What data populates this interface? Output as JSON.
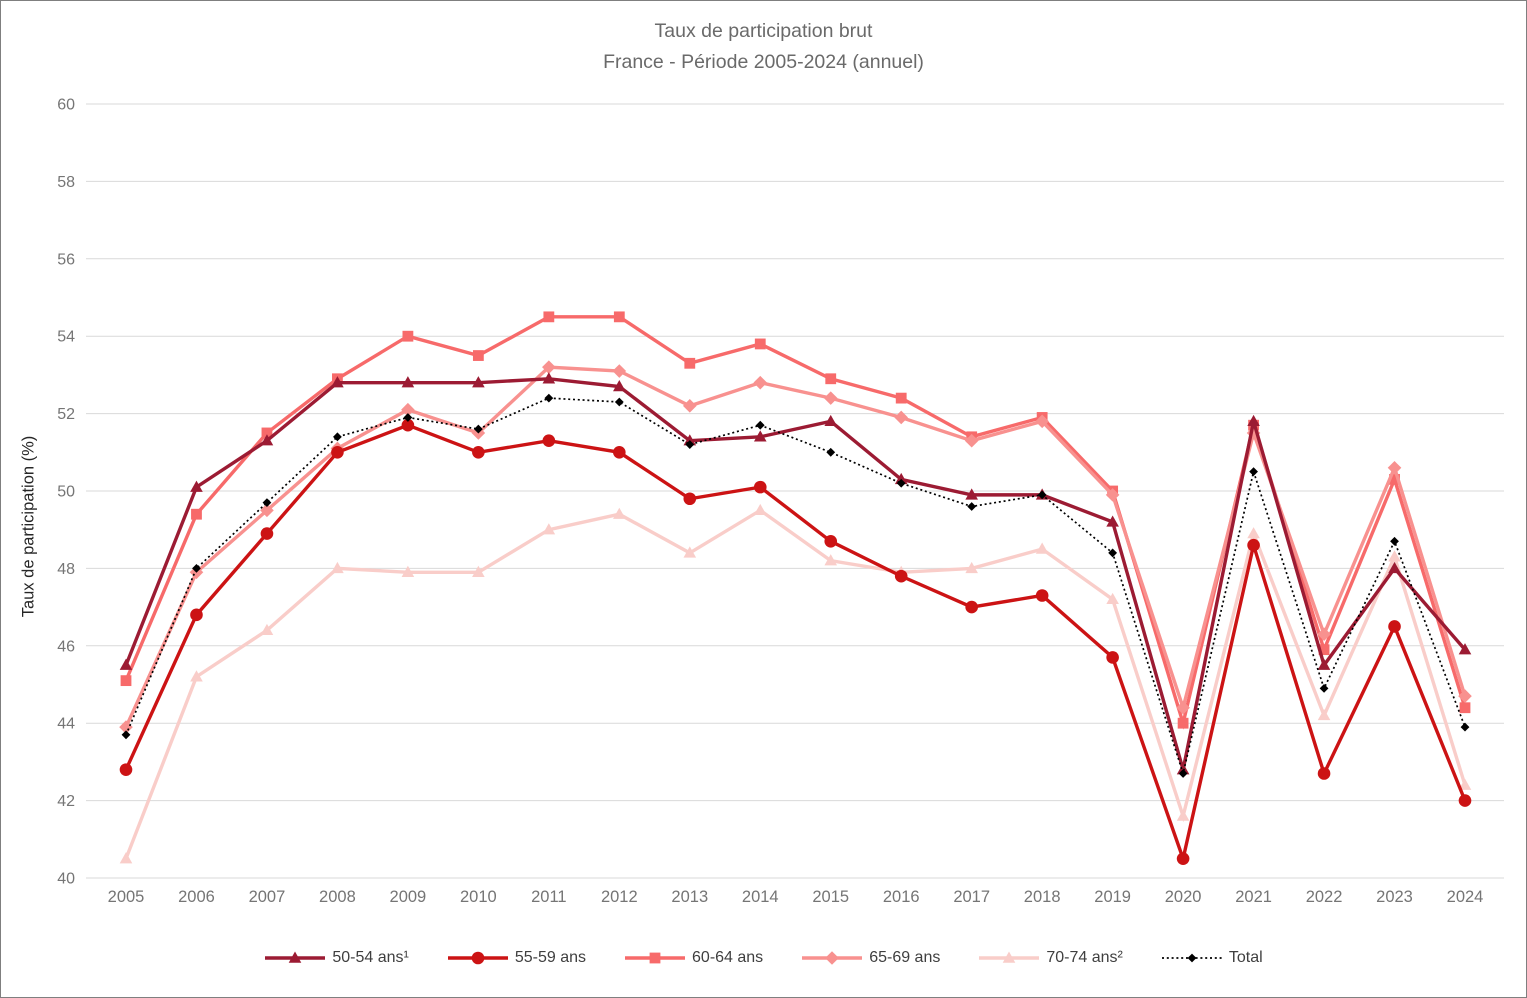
{
  "chart_data": {
    "type": "line",
    "title": "Taux de participation brut",
    "subtitle": "France - Période 2005-2024 (annuel)",
    "ylabel": "Taux de participation (%)",
    "xlabel": "",
    "ylim": [
      40,
      60
    ],
    "yticks": [
      40,
      42,
      44,
      46,
      48,
      50,
      52,
      54,
      56,
      58,
      60
    ],
    "grid": "horizontal-light",
    "grid_color": "#d9d9d9",
    "legend_position": "bottom",
    "categories": [
      "2005",
      "2006",
      "2007",
      "2008",
      "2009",
      "2010",
      "2011",
      "2012",
      "2013",
      "2014",
      "2015",
      "2016",
      "2017",
      "2018",
      "2019",
      "2020",
      "2021",
      "2022",
      "2023",
      "2024"
    ],
    "series": [
      {
        "name": "50-54 ans¹",
        "color": "#9c1b33",
        "marker": "triangle",
        "line": "solid",
        "values": [
          45.5,
          50.1,
          51.3,
          52.8,
          52.8,
          52.8,
          52.9,
          52.7,
          51.3,
          51.4,
          51.8,
          50.3,
          49.9,
          49.9,
          49.2,
          42.8,
          51.8,
          45.5,
          48.0,
          45.9
        ]
      },
      {
        "name": "55-59 ans",
        "color": "#cc1314",
        "marker": "circle",
        "line": "solid",
        "values": [
          42.8,
          46.8,
          48.9,
          51.0,
          51.7,
          51.0,
          51.3,
          51.0,
          49.8,
          50.1,
          48.7,
          47.8,
          47.0,
          47.3,
          45.7,
          40.5,
          48.6,
          42.7,
          46.5,
          42.0
        ]
      },
      {
        "name": "60-64 ans",
        "color": "#f76a6a",
        "marker": "square",
        "line": "solid",
        "values": [
          45.1,
          49.4,
          51.5,
          52.9,
          54.0,
          53.5,
          54.5,
          54.5,
          53.3,
          53.8,
          52.9,
          52.4,
          51.4,
          51.9,
          50.0,
          44.0,
          51.7,
          45.9,
          50.3,
          44.4
        ]
      },
      {
        "name": "65-69 ans",
        "color": "#f8918f",
        "marker": "diamond",
        "line": "solid",
        "values": [
          43.9,
          47.9,
          49.5,
          51.1,
          52.1,
          51.5,
          53.2,
          53.1,
          52.2,
          52.8,
          52.4,
          51.9,
          51.3,
          51.8,
          49.9,
          44.4,
          51.5,
          46.3,
          50.6,
          44.7
        ]
      },
      {
        "name": "70-74 ans²",
        "color": "#f9cdc9",
        "marker": "triangle",
        "line": "solid",
        "values": [
          40.5,
          45.2,
          46.4,
          48.0,
          47.9,
          47.9,
          49.0,
          49.4,
          48.4,
          49.5,
          48.2,
          47.9,
          48.0,
          48.5,
          47.2,
          41.6,
          48.9,
          44.2,
          48.3,
          42.4
        ]
      },
      {
        "name": "Total",
        "color": "#000000",
        "marker": "diamond-small",
        "line": "dotted",
        "values": [
          43.7,
          48.0,
          49.7,
          51.4,
          51.9,
          51.6,
          52.4,
          52.3,
          51.2,
          51.7,
          51.0,
          50.2,
          49.6,
          49.9,
          48.4,
          42.7,
          50.5,
          44.9,
          48.7,
          43.9
        ]
      }
    ]
  }
}
